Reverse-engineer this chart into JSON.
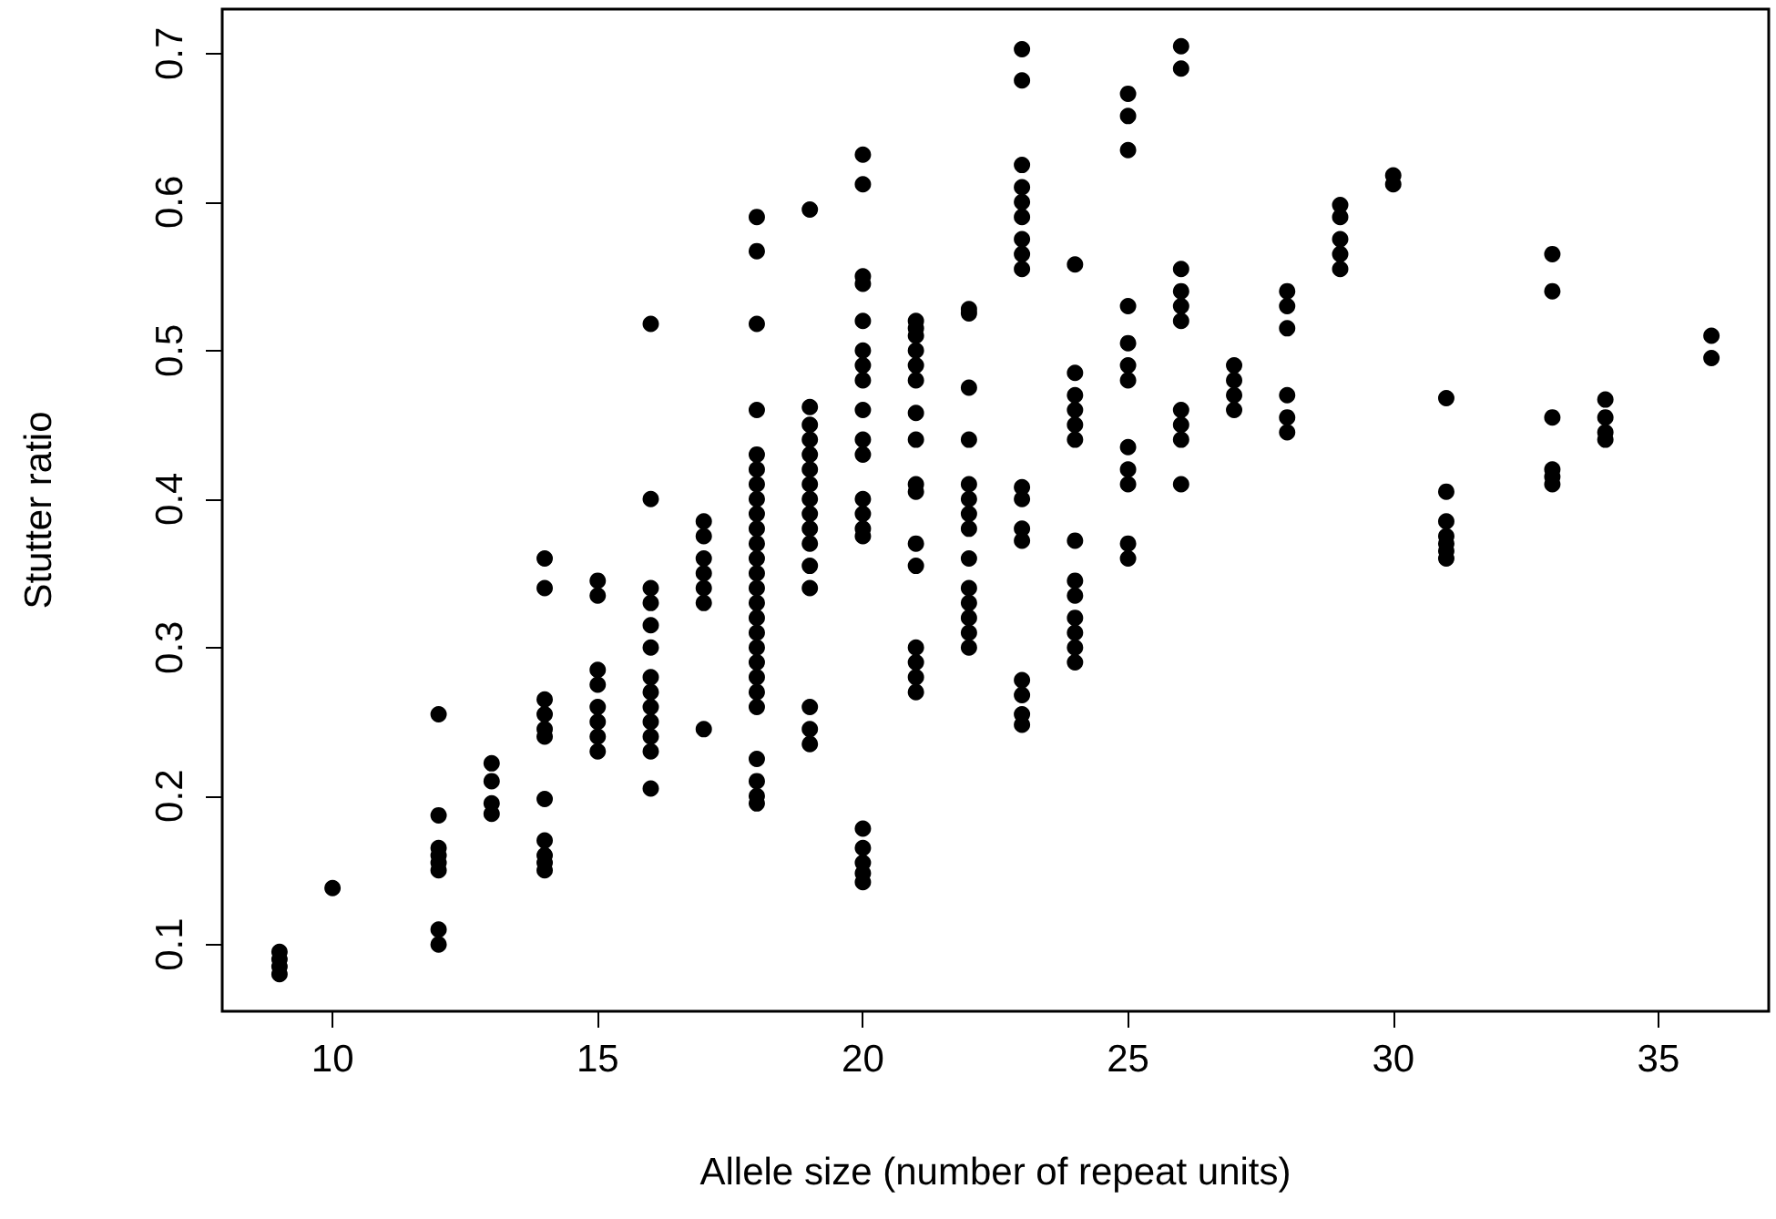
{
  "chart_data": {
    "type": "scatter",
    "xlabel": "Allele size (number of repeat units)",
    "ylabel": "Stutter ratio",
    "marker": "circle",
    "grid": false,
    "xlim": [
      7.92,
      37.08
    ],
    "xticks": [
      10,
      15,
      20,
      25,
      30,
      35
    ],
    "ylim": [
      0.055,
      0.73
    ],
    "yticks": [
      0.1,
      0.2,
      0.3,
      0.4,
      0.5,
      0.6,
      0.7
    ],
    "series": [
      {
        "color": "#000000",
        "x": [
          9,
          9,
          9,
          9,
          10,
          12,
          12,
          12,
          12,
          12,
          12,
          12,
          12,
          13,
          13,
          13,
          13,
          14,
          14,
          14,
          14,
          14,
          14,
          14,
          14,
          14,
          14,
          14,
          15,
          15,
          15,
          15,
          15,
          15,
          15,
          15,
          16,
          16,
          16,
          16,
          16,
          16,
          16,
          16,
          16,
          16,
          16,
          16,
          16,
          17,
          17,
          17,
          17,
          17,
          17,
          17,
          18,
          18,
          18,
          18,
          18,
          18,
          18,
          18,
          18,
          18,
          18,
          18,
          18,
          18,
          18,
          18,
          18,
          18,
          18,
          18,
          18,
          18,
          18,
          18,
          18,
          18,
          19,
          19,
          19,
          19,
          19,
          19,
          19,
          19,
          19,
          19,
          19,
          19,
          19,
          19,
          19,
          19,
          20,
          20,
          20,
          20,
          20,
          20,
          20,
          20,
          20,
          20,
          20,
          20,
          20,
          20,
          20,
          20,
          20,
          20,
          20,
          20,
          21,
          21,
          21,
          21,
          21,
          21,
          21,
          21,
          21,
          21,
          21,
          21,
          21,
          21,
          21,
          21,
          22,
          22,
          22,
          22,
          22,
          22,
          22,
          22,
          22,
          22,
          22,
          22,
          22,
          22,
          23,
          23,
          23,
          23,
          23,
          23,
          23,
          23,
          23,
          23,
          23,
          23,
          23,
          23,
          23,
          23,
          23,
          24,
          24,
          24,
          24,
          24,
          24,
          24,
          24,
          24,
          24,
          24,
          24,
          24,
          25,
          25,
          25,
          25,
          25,
          25,
          25,
          25,
          25,
          25,
          25,
          25,
          26,
          26,
          26,
          26,
          26,
          26,
          26,
          26,
          26,
          26,
          27,
          27,
          27,
          27,
          28,
          28,
          28,
          28,
          28,
          28,
          29,
          29,
          29,
          29,
          29,
          30,
          30,
          31,
          31,
          31,
          31,
          31,
          31,
          31,
          33,
          33,
          33,
          33,
          33,
          33,
          34,
          34,
          34,
          34,
          36,
          36
        ],
        "values": [
          0.08,
          0.085,
          0.09,
          0.095,
          0.138,
          0.255,
          0.187,
          0.165,
          0.16,
          0.155,
          0.15,
          0.11,
          0.1,
          0.222,
          0.21,
          0.195,
          0.188,
          0.36,
          0.34,
          0.265,
          0.255,
          0.245,
          0.24,
          0.198,
          0.17,
          0.16,
          0.155,
          0.15,
          0.345,
          0.335,
          0.285,
          0.275,
          0.26,
          0.25,
          0.24,
          0.23,
          0.518,
          0.4,
          0.34,
          0.33,
          0.315,
          0.3,
          0.28,
          0.27,
          0.26,
          0.25,
          0.24,
          0.23,
          0.205,
          0.385,
          0.375,
          0.36,
          0.35,
          0.34,
          0.33,
          0.245,
          0.59,
          0.567,
          0.518,
          0.46,
          0.43,
          0.42,
          0.41,
          0.4,
          0.39,
          0.38,
          0.37,
          0.36,
          0.35,
          0.34,
          0.33,
          0.32,
          0.31,
          0.3,
          0.29,
          0.28,
          0.27,
          0.26,
          0.225,
          0.21,
          0.2,
          0.195,
          0.595,
          0.462,
          0.45,
          0.44,
          0.43,
          0.42,
          0.41,
          0.4,
          0.39,
          0.38,
          0.37,
          0.355,
          0.34,
          0.26,
          0.245,
          0.235,
          0.632,
          0.612,
          0.55,
          0.545,
          0.52,
          0.5,
          0.49,
          0.48,
          0.46,
          0.44,
          0.43,
          0.4,
          0.39,
          0.38,
          0.375,
          0.178,
          0.165,
          0.155,
          0.148,
          0.142,
          0.52,
          0.515,
          0.51,
          0.5,
          0.49,
          0.48,
          0.458,
          0.44,
          0.41,
          0.405,
          0.37,
          0.355,
          0.3,
          0.29,
          0.28,
          0.27,
          0.528,
          0.525,
          0.475,
          0.44,
          0.41,
          0.4,
          0.39,
          0.38,
          0.36,
          0.34,
          0.33,
          0.32,
          0.31,
          0.3,
          0.703,
          0.682,
          0.625,
          0.61,
          0.6,
          0.59,
          0.575,
          0.565,
          0.555,
          0.408,
          0.4,
          0.38,
          0.372,
          0.278,
          0.268,
          0.255,
          0.248,
          0.558,
          0.485,
          0.47,
          0.46,
          0.45,
          0.44,
          0.372,
          0.345,
          0.335,
          0.32,
          0.31,
          0.3,
          0.29,
          0.673,
          0.658,
          0.635,
          0.53,
          0.505,
          0.49,
          0.48,
          0.435,
          0.42,
          0.41,
          0.37,
          0.36,
          0.705,
          0.69,
          0.555,
          0.54,
          0.53,
          0.52,
          0.46,
          0.45,
          0.44,
          0.41,
          0.49,
          0.48,
          0.47,
          0.46,
          0.54,
          0.53,
          0.515,
          0.47,
          0.455,
          0.445,
          0.598,
          0.59,
          0.575,
          0.565,
          0.555,
          0.618,
          0.612,
          0.468,
          0.405,
          0.385,
          0.375,
          0.37,
          0.365,
          0.36,
          0.565,
          0.54,
          0.455,
          0.42,
          0.415,
          0.41,
          0.467,
          0.455,
          0.445,
          0.44,
          0.51,
          0.495
        ]
      }
    ]
  }
}
